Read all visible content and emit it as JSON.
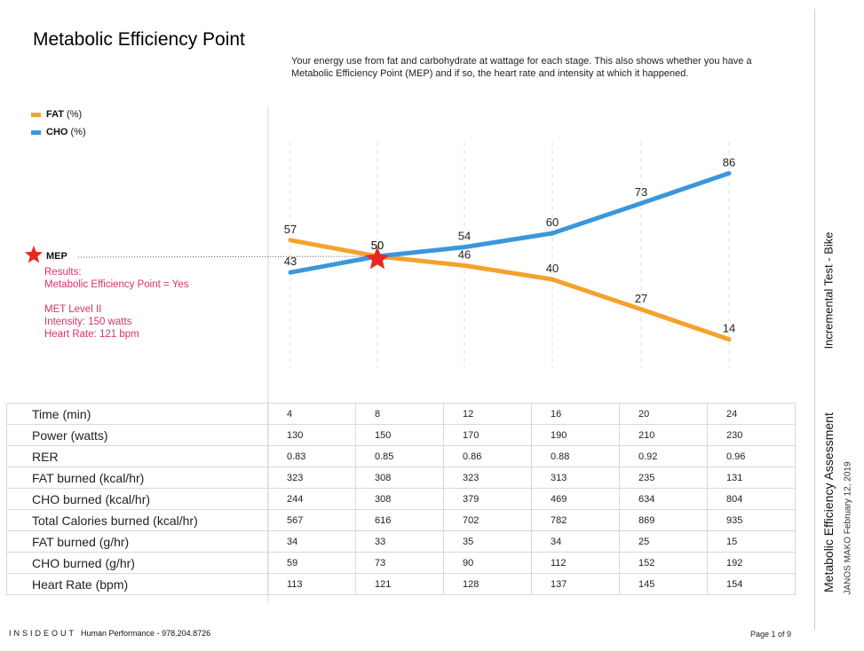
{
  "title": "Metabolic Efficiency Point",
  "subtitle": "Your energy use from fat and carbohydrate at wattage for each stage. This also shows whether you have a Metabolic Efficiency Point (MEP) and if so, the heart rate and intensity at which it happened.",
  "colors": {
    "fat": "#f4a22d",
    "cho": "#3b97dc",
    "mep_star": "#e8281e",
    "results_text": "#d8336b"
  },
  "legend": [
    {
      "name": "FAT",
      "unit": "(%)"
    },
    {
      "name": "CHO",
      "unit": "(%)"
    }
  ],
  "mep": {
    "label": "MEP",
    "results": [
      "Results:",
      "Metabolic Efficiency Point = Yes",
      "MET Level II",
      "Intensity: 150 watts",
      "Heart Rate: 121 bpm"
    ]
  },
  "chart_data": {
    "type": "line",
    "x_index": [
      1,
      2,
      3,
      4,
      5,
      6
    ],
    "ylim": [
      0,
      100
    ],
    "grid": "vertical dashed",
    "legend_position": "top-left",
    "series": [
      {
        "name": "FAT",
        "unit": "(%)",
        "values": [
          57,
          50,
          46,
          40,
          27,
          14
        ]
      },
      {
        "name": "CHO",
        "unit": "(%)",
        "values": [
          43,
          50,
          54,
          60,
          73,
          86
        ]
      }
    ],
    "mep_marker_index": 1,
    "mep_value": 50
  },
  "table": {
    "rows": [
      {
        "label": "Time (min)",
        "values": [
          "4",
          "8",
          "12",
          "16",
          "20",
          "24"
        ]
      },
      {
        "label": "Power (watts)",
        "values": [
          "130",
          "150",
          "170",
          "190",
          "210",
          "230"
        ]
      },
      {
        "label": "RER",
        "values": [
          "0.83",
          "0.85",
          "0.86",
          "0.88",
          "0.92",
          "0.96"
        ]
      },
      {
        "label": "FAT burned (kcal/hr)",
        "values": [
          "323",
          "308",
          "323",
          "313",
          "235",
          "131"
        ]
      },
      {
        "label": "CHO burned (kcal/hr)",
        "values": [
          "244",
          "308",
          "379",
          "469",
          "634",
          "804"
        ]
      },
      {
        "label": "Total Calories burned (kcal/hr)",
        "values": [
          "567",
          "616",
          "702",
          "782",
          "869",
          "935"
        ]
      },
      {
        "label": "FAT burned (g/hr)",
        "values": [
          "34",
          "33",
          "35",
          "34",
          "25",
          "15"
        ]
      },
      {
        "label": "CHO burned (g/hr)",
        "values": [
          "59",
          "73",
          "90",
          "112",
          "152",
          "192"
        ]
      },
      {
        "label": "Heart Rate (bpm)",
        "values": [
          "113",
          "121",
          "128",
          "137",
          "145",
          "154"
        ]
      }
    ]
  },
  "side": {
    "test": "Incremental Test - Bike",
    "assessment": "Metabolic Efficiency Assessment",
    "author": "JANOS MAKO  February 12, 2019"
  },
  "footer": {
    "brand": "INSIDEOUT",
    "brand_rest": "Human Performance - 978.204.8726",
    "page": "Page 1 of 9"
  }
}
